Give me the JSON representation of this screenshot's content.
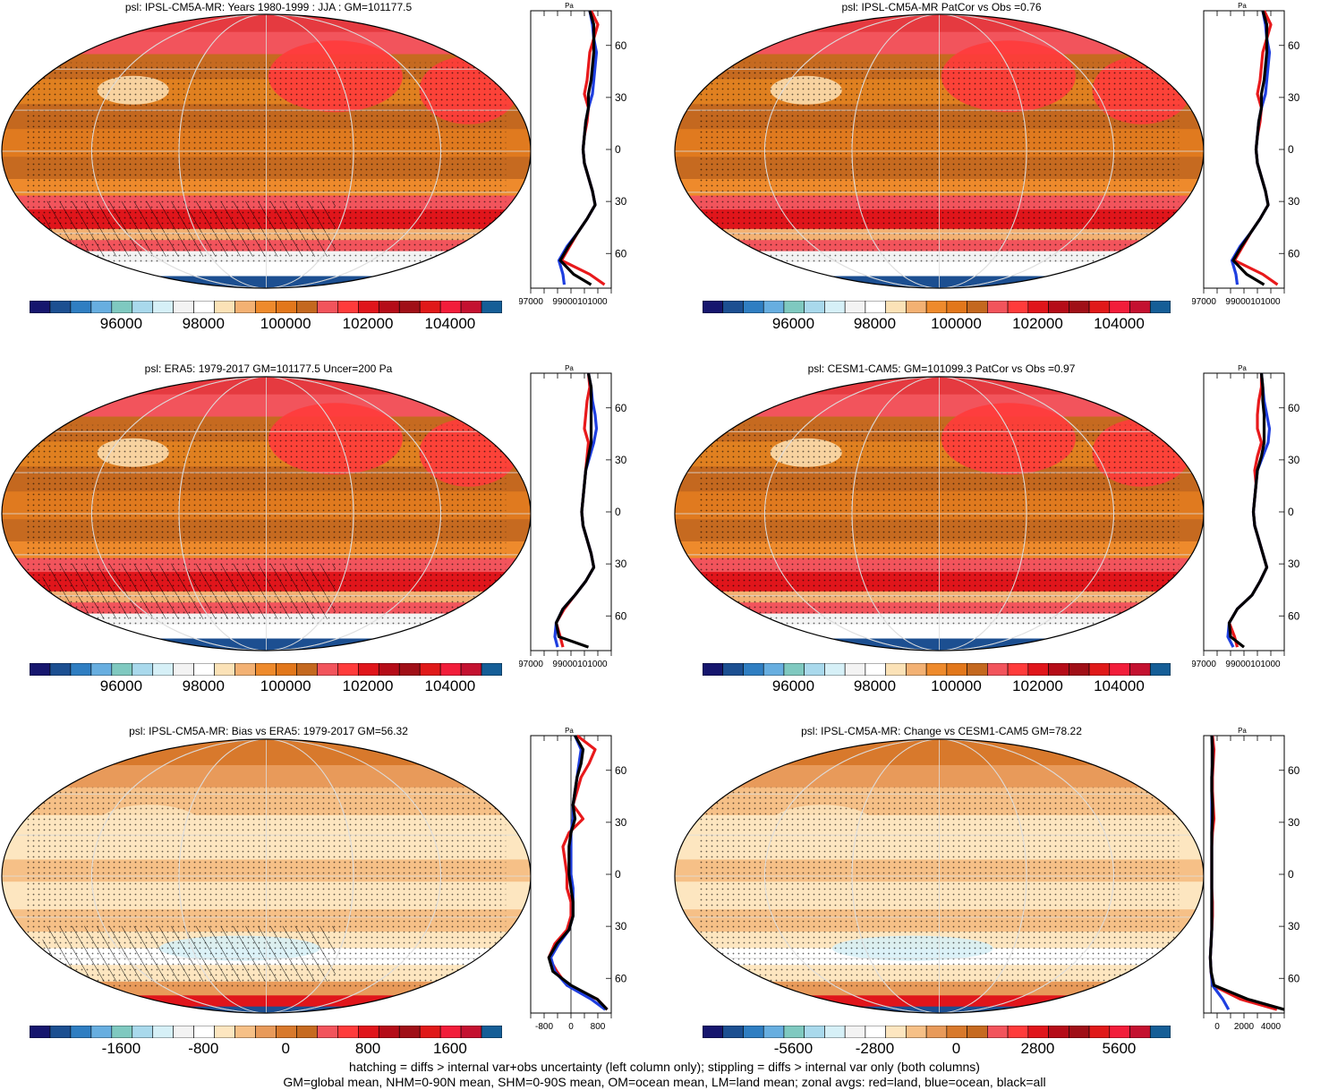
{
  "palettes": {
    "abs": [
      "#16166e",
      "#1c4f91",
      "#2f7ec2",
      "#67aee0",
      "#7fc9c0",
      "#a9d9ec",
      "#d6f0f7",
      "#f3f3f3",
      "#ffffff",
      "#fbe2b7",
      "#f3b173",
      "#ee8a2c",
      "#e2771b",
      "#c4681f",
      "#f2545c",
      "#ff3b3b",
      "#e0151b",
      "#b50c18",
      "#a00f17",
      "#e01919",
      "#f21d3a",
      "#c41130",
      "#155e97"
    ],
    "diff": [
      "#16166e",
      "#1c4f91",
      "#2f7ec2",
      "#67aee0",
      "#7fc9c0",
      "#a9d9ec",
      "#d6f0f7",
      "#f3f3f3",
      "#ffffff",
      "#fde6c0",
      "#f6c087",
      "#e89a5a",
      "#d8792c",
      "#c66a20",
      "#f2545c",
      "#ff3b3b",
      "#e0151b",
      "#b50c18",
      "#a00f17",
      "#e01919",
      "#f21d3a",
      "#c41130",
      "#155e97"
    ]
  },
  "panels": [
    {
      "id": "ipsl-clim",
      "title": "psl: IPSL-CM5A-MR: Years 1980-1999 : JJA : GM=101177.5",
      "kind": "abs",
      "hatch": true,
      "colorbar_labels": [
        "96000",
        "98000",
        "100000",
        "102000",
        "104000"
      ],
      "zonal": {
        "unit": "Pa",
        "xlim": [
          97000,
          103000
        ],
        "x_tick_labels": [
          "97000",
          "99000101000"
        ],
        "y_tick_labels": [
          "60N",
          "30N",
          "0",
          "30S",
          "60S"
        ],
        "lat": [
          80,
          72,
          64,
          56,
          48,
          40,
          32,
          24,
          16,
          8,
          0,
          -8,
          -16,
          -24,
          -32,
          -40,
          -48,
          -56,
          -64,
          -72,
          -78
        ],
        "series": [
          {
            "color": "#e8191b",
            "values": [
              101500,
              102000,
              101700,
              101400,
              101300,
              101200,
              101000,
              101300,
              101200,
              101000,
              100900,
              101000,
              101300,
              101600,
              101800,
              101200,
              100500,
              99900,
              99300,
              101400,
              102500
            ]
          },
          {
            "color": "#1f3fe0",
            "values": [
              101400,
              101600,
              101700,
              101900,
              101800,
              101700,
              101600,
              101300,
              101100,
              101000,
              100900,
              101000,
              101300,
              101600,
              101800,
              101200,
              100500,
              99700,
              99100,
              99400,
              99500
            ]
          },
          {
            "color": "#000000",
            "values": [
              101400,
              101700,
              101700,
              101700,
              101600,
              101500,
              101300,
              101300,
              101100,
              101000,
              100900,
              101000,
              101300,
              101600,
              101800,
              101200,
              100500,
              99800,
              99200,
              100200,
              101500
            ]
          }
        ]
      }
    },
    {
      "id": "ipsl-patcor",
      "title": "psl: IPSL-CM5A-MR PatCor vs Obs =0.76",
      "kind": "abs",
      "hatch": false,
      "colorbar_labels": [
        "96000",
        "98000",
        "100000",
        "102000",
        "104000"
      ],
      "zonal": {
        "unit": "Pa",
        "xlim": [
          97000,
          103000
        ],
        "x_tick_labels": [
          "97000",
          "99000101000"
        ],
        "y_tick_labels": [
          "60N",
          "30N",
          "0",
          "30S",
          "60S"
        ],
        "lat": [
          80,
          72,
          64,
          56,
          48,
          40,
          32,
          24,
          16,
          8,
          0,
          -8,
          -16,
          -24,
          -32,
          -40,
          -48,
          -56,
          -64,
          -72,
          -78
        ],
        "series": [
          {
            "color": "#e8191b",
            "values": [
              101500,
              102000,
              101700,
              101400,
              101300,
              101200,
              101000,
              101300,
              101200,
              101000,
              100900,
              101000,
              101300,
              101600,
              101800,
              101200,
              100500,
              99900,
              99300,
              101400,
              102500
            ]
          },
          {
            "color": "#1f3fe0",
            "values": [
              101400,
              101600,
              101700,
              101900,
              101800,
              101700,
              101600,
              101300,
              101100,
              101000,
              100900,
              101000,
              101300,
              101600,
              101800,
              101200,
              100500,
              99700,
              99100,
              99400,
              99500
            ]
          },
          {
            "color": "#000000",
            "values": [
              101400,
              101700,
              101700,
              101700,
              101600,
              101500,
              101300,
              101300,
              101100,
              101000,
              100900,
              101000,
              101300,
              101600,
              101800,
              101200,
              100500,
              99800,
              99200,
              100200,
              101500
            ]
          }
        ]
      }
    },
    {
      "id": "era5",
      "title": "psl: ERA5: 1979-2017 GM=101177.5 Uncer=200 Pa",
      "kind": "abs",
      "hatch": true,
      "colorbar_labels": [
        "96000",
        "98000",
        "100000",
        "102000",
        "104000"
      ],
      "zonal": {
        "unit": "Pa",
        "xlim": [
          97000,
          103000
        ],
        "x_tick_labels": [
          "97000",
          "99000101000"
        ],
        "y_tick_labels": [
          "60N",
          "30N",
          "0",
          "30S",
          "60S"
        ],
        "lat": [
          80,
          72,
          64,
          56,
          48,
          40,
          32,
          24,
          16,
          8,
          0,
          -8,
          -16,
          -24,
          -32,
          -40,
          -48,
          -56,
          -64,
          -72,
          -78
        ],
        "series": [
          {
            "color": "#e8191b",
            "values": [
              101300,
              101400,
              101200,
              101100,
              101000,
              101300,
              101200,
              101100,
              101000,
              100900,
              100800,
              100900,
              101200,
              101500,
              101700,
              101100,
              100300,
              99500,
              98900,
              99200,
              99400
            ]
          },
          {
            "color": "#1f3fe0",
            "values": [
              101300,
              101500,
              101600,
              101800,
              101900,
              101700,
              101400,
              101100,
              101000,
              100900,
              100800,
              100900,
              101200,
              101500,
              101700,
              101100,
              100300,
              99400,
              98900,
              98800,
              99000
            ]
          },
          {
            "color": "#000000",
            "values": [
              101300,
              101500,
              101500,
              101500,
              101500,
              101500,
              101300,
              101100,
              101000,
              100900,
              100800,
              100900,
              101200,
              101500,
              101700,
              101100,
              100300,
              99400,
              98900,
              99100,
              101300
            ]
          }
        ]
      }
    },
    {
      "id": "cesm",
      "title": "psl: CESM1-CAM5: GM=101099.3 PatCor vs Obs =0.97",
      "kind": "abs",
      "hatch": false,
      "colorbar_labels": [
        "96000",
        "98000",
        "100000",
        "102000",
        "104000"
      ],
      "zonal": {
        "unit": "Pa",
        "xlim": [
          97000,
          103000
        ],
        "x_tick_labels": [
          "97000",
          "99000101000"
        ],
        "y_tick_labels": [
          "60N",
          "30N",
          "0",
          "30S",
          "60S"
        ],
        "lat": [
          80,
          72,
          64,
          56,
          48,
          40,
          32,
          24,
          16,
          8,
          0,
          -8,
          -16,
          -24,
          -32,
          -40,
          -48,
          -56,
          -64,
          -72,
          -78
        ],
        "series": [
          {
            "color": "#e8191b",
            "values": [
              101300,
              101300,
              101100,
              101000,
              101000,
              101300,
              101000,
              100800,
              100900,
              100800,
              100700,
              100800,
              101100,
              101400,
              101700,
              101200,
              100600,
              99500,
              98900,
              99300,
              99500
            ]
          },
          {
            "color": "#1f3fe0",
            "values": [
              101300,
              101400,
              101500,
              101700,
              101900,
              101800,
              101400,
              101000,
              100900,
              100800,
              100700,
              100800,
              101100,
              101400,
              101700,
              101200,
              100600,
              99500,
              98900,
              98800,
              99200
            ]
          },
          {
            "color": "#000000",
            "values": [
              101300,
              101400,
              101400,
              101500,
              101500,
              101500,
              101300,
              101000,
              100900,
              100800,
              100700,
              100800,
              101100,
              101400,
              101700,
              101200,
              100600,
              99500,
              98900,
              99000,
              100000
            ]
          }
        ]
      }
    },
    {
      "id": "ipsl-bias",
      "title": "psl: IPSL-CM5A-MR: Bias vs ERA5: 1979-2017 GM=56.32",
      "kind": "diff",
      "hatch": true,
      "colorbar_labels": [
        "-1600",
        "-800",
        "0",
        "800",
        "1600"
      ],
      "zonal": {
        "unit": "Pa",
        "xlim": [
          -1000,
          1000
        ],
        "x_tick_labels": [
          "-800",
          "0",
          "800"
        ],
        "zero_line": true,
        "y_tick_labels": [
          "60N",
          "30N",
          "0",
          "30S",
          "60S"
        ],
        "lat": [
          80,
          72,
          64,
          56,
          48,
          40,
          32,
          24,
          16,
          8,
          0,
          -8,
          -16,
          -24,
          -32,
          -40,
          -48,
          -56,
          -64,
          -72,
          -78
        ],
        "series": [
          {
            "color": "#e8191b",
            "values": [
              150,
              600,
              450,
              250,
              150,
              50,
              300,
              -50,
              -200,
              -150,
              -100,
              -100,
              0,
              0,
              -100,
              -400,
              -550,
              -350,
              -100,
              650,
              900
            ]
          },
          {
            "color": "#1f3fe0",
            "values": [
              100,
              250,
              200,
              150,
              100,
              50,
              50,
              0,
              0,
              0,
              0,
              50,
              50,
              50,
              -50,
              -300,
              -500,
              -400,
              -100,
              500,
              850
            ]
          },
          {
            "color": "#000000",
            "values": [
              100,
              300,
              250,
              150,
              100,
              50,
              100,
              0,
              -50,
              -50,
              -50,
              0,
              50,
              50,
              -50,
              -350,
              -550,
              -450,
              0,
              650,
              900
            ]
          }
        ]
      }
    },
    {
      "id": "ipsl-change",
      "title": "psl: IPSL-CM5A-MR: Change vs CESM1-CAM5 GM=78.22",
      "kind": "diff",
      "hatch": false,
      "colorbar_labels": [
        "-5600",
        "-2800",
        "0",
        "2800",
        "5600"
      ],
      "zonal": {
        "unit": "Pa",
        "xlim": [
          -500,
          5000
        ],
        "x_tick_labels": [
          "0",
          "2000",
          "4000"
        ],
        "zero_line": true,
        "y_tick_labels": [
          "60N",
          "30N",
          "0",
          "30S",
          "60S"
        ],
        "lat": [
          80,
          72,
          64,
          56,
          48,
          40,
          32,
          24,
          16,
          8,
          0,
          -8,
          -16,
          -24,
          -32,
          -40,
          -48,
          -56,
          -64,
          -72,
          -78
        ],
        "series": [
          {
            "color": "#e8191b",
            "values": [
              100,
              200,
              150,
              100,
              100,
              150,
              200,
              100,
              50,
              50,
              50,
              50,
              100,
              100,
              50,
              0,
              -50,
              0,
              100,
              2000,
              4500
            ]
          },
          {
            "color": "#1f3fe0",
            "values": [
              50,
              100,
              100,
              50,
              50,
              50,
              50,
              50,
              50,
              50,
              50,
              50,
              50,
              50,
              50,
              0,
              -50,
              0,
              100,
              800,
              1200
            ]
          },
          {
            "color": "#000000",
            "values": [
              50,
              100,
              100,
              50,
              50,
              100,
              100,
              50,
              50,
              50,
              50,
              50,
              50,
              50,
              50,
              0,
              -50,
              0,
              200,
              2500,
              5000
            ]
          }
        ]
      }
    }
  ],
  "footer": {
    "line1": "hatching = diffs > internal var+obs uncertainty (left column only); stippling = diffs > internal var only (both columns)",
    "line2": "GM=global mean, NHM=0-90N mean, SHM=0-90S mean, OM=ocean mean, LM=land mean; zonal avgs: red=land, blue=ocean, black=all"
  }
}
